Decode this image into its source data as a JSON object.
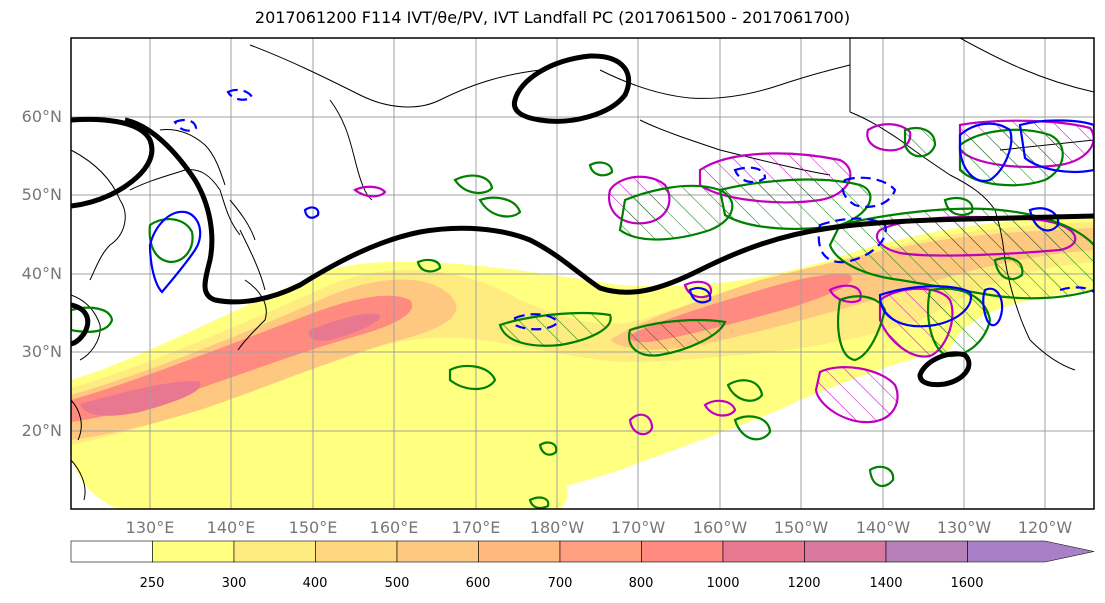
{
  "title": "2017061200 F114 IVT/θe/PV, IVT Landfall PC (2017061500 - 2017061700)",
  "map": {
    "lat_labels": [
      "60°N",
      "50°N",
      "40°N",
      "30°N",
      "20°N"
    ],
    "lon_labels": [
      "130°E",
      "140°E",
      "150°E",
      "160°E",
      "170°E",
      "180°W",
      "170°W",
      "160°W",
      "150°W",
      "140°W",
      "130°W",
      "120°W"
    ],
    "colors": {
      "pv_contour": "#000000",
      "green_contour": "#008000",
      "blue_contour": "#0000ff",
      "magenta_contour": "#c000c0",
      "coastline": "#000000",
      "gridline": "#a0a0a0"
    }
  },
  "colorbar": {
    "levels": [
      "250",
      "300",
      "400",
      "500",
      "600",
      "700",
      "800",
      "1000",
      "1200",
      "1400",
      "1600"
    ],
    "colors": [
      "#ffffff",
      "#ffff80",
      "#ffec80",
      "#ffd780",
      "#ffc880",
      "#ffb880",
      "#ffa080",
      "#ff8a80",
      "#e87890",
      "#d878a0",
      "#b880b8",
      "#a880c8"
    ]
  }
}
